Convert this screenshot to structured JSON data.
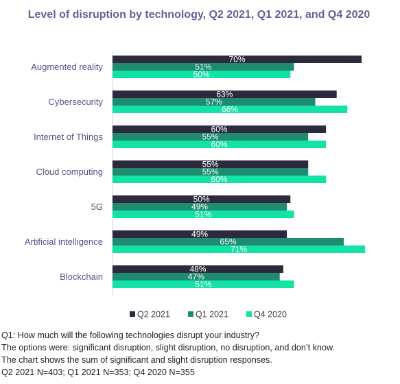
{
  "chart_data": {
    "type": "bar",
    "orientation": "horizontal",
    "title": "Level of disruption by technology, Q2 2021, Q1 2021, and Q4 2020",
    "categories": [
      "Augmented reality",
      "Cybersecurity",
      "Internet of Things",
      "Cloud computing",
      "5G",
      "Artificial intelligence",
      "Blockchain"
    ],
    "series": [
      {
        "name": "Q2 2021",
        "color": "#2d2a3e",
        "values": [
          70,
          63,
          60,
          55,
          50,
          49,
          48
        ]
      },
      {
        "name": "Q1 2021",
        "color": "#1f8c71",
        "values": [
          51,
          57,
          55,
          55,
          49,
          65,
          47
        ]
      },
      {
        "name": "Q4 2020",
        "color": "#12e2a5",
        "values": [
          50,
          66,
          60,
          60,
          51,
          71,
          51
        ]
      }
    ],
    "value_suffix": "%",
    "xlim": [
      0,
      72
    ],
    "legend_position": "bottom",
    "grid": false
  },
  "notes": [
    "Q1: How much will the following technologies disrupt your industry?",
    "The options were: significant disruption, slight disruption, no disruption, and don’t know.",
    "The chart shows the sum of significant and slight disruption responses.",
    "Q2 2021 N=403; Q1 2021 N=353; Q4 2020 N=355"
  ]
}
